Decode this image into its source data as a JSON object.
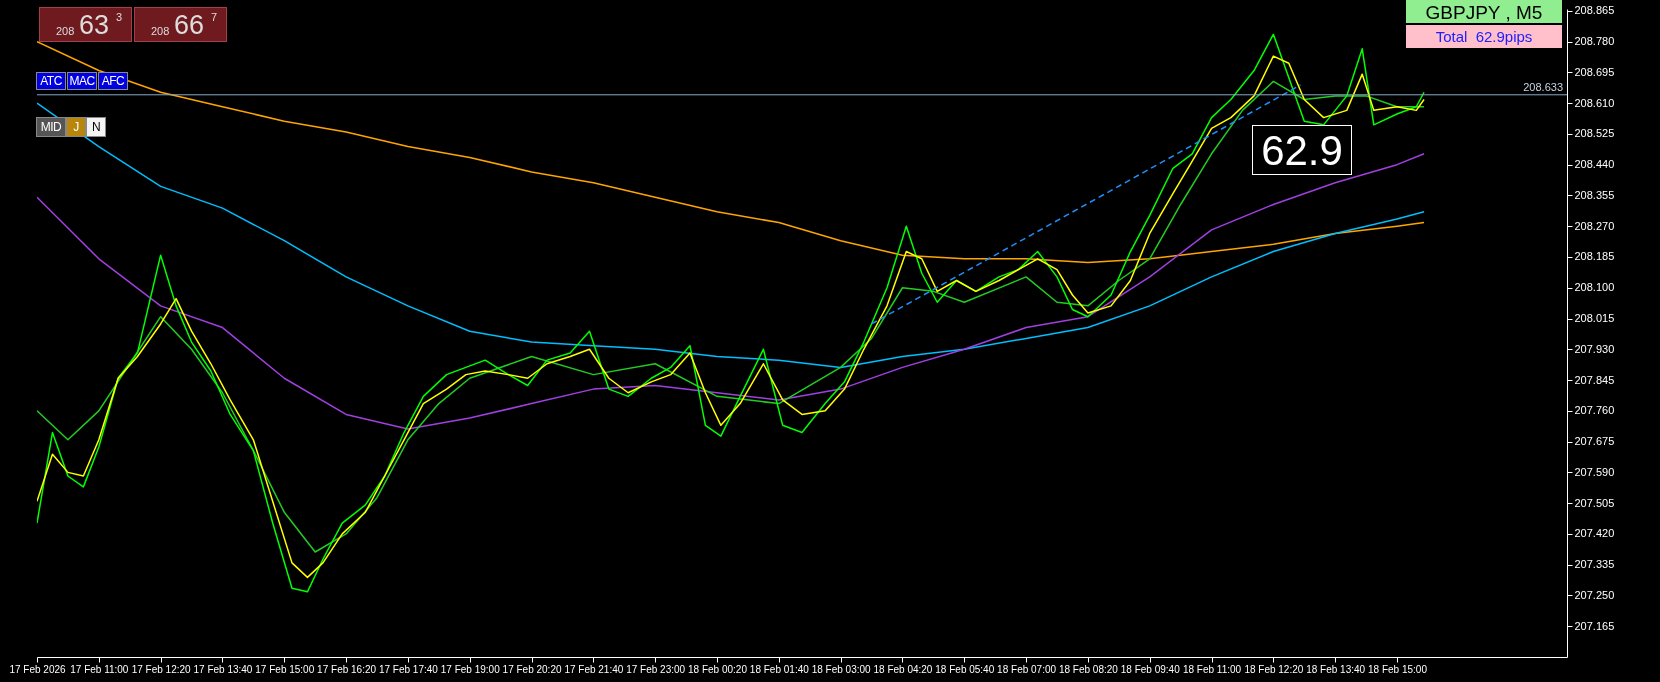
{
  "chart_data": {
    "type": "line",
    "title": "GBPJPY , M5",
    "subtitle": "Total  62.9pips",
    "xlim": [
      "2026-02-17T09:40",
      "2026-02-18T18:40"
    ],
    "xticks": [
      {
        "value": "2026-02-17T09:40",
        "label": "17 Feb 2026"
      },
      {
        "value": "2026-02-17T11:00",
        "label": "17 Feb 11:00"
      },
      {
        "value": "2026-02-17T12:20",
        "label": "17 Feb 12:20"
      },
      {
        "value": "2026-02-17T13:40",
        "label": "17 Feb 13:40"
      },
      {
        "value": "2026-02-17T15:00",
        "label": "17 Feb 15:00"
      },
      {
        "value": "2026-02-17T16:20",
        "label": "17 Feb 16:20"
      },
      {
        "value": "2026-02-17T17:40",
        "label": "17 Feb 17:40"
      },
      {
        "value": "2026-02-17T19:00",
        "label": "17 Feb 19:00"
      },
      {
        "value": "2026-02-17T20:20",
        "label": "17 Feb 20:20"
      },
      {
        "value": "2026-02-17T21:40",
        "label": "17 Feb 21:40"
      },
      {
        "value": "2026-02-17T23:00",
        "label": "17 Feb 23:00"
      },
      {
        "value": "2026-02-18T00:20",
        "label": "18 Feb 00:20"
      },
      {
        "value": "2026-02-18T01:40",
        "label": "18 Feb 01:40"
      },
      {
        "value": "2026-02-18T03:00",
        "label": "18 Feb 03:00"
      },
      {
        "value": "2026-02-18T04:20",
        "label": "18 Feb 04:20"
      },
      {
        "value": "2026-02-18T05:40",
        "label": "18 Feb 05:40"
      },
      {
        "value": "2026-02-18T07:00",
        "label": "18 Feb 07:00"
      },
      {
        "value": "2026-02-18T08:20",
        "label": "18 Feb 08:20"
      },
      {
        "value": "2026-02-18T09:40",
        "label": "18 Feb 09:40"
      },
      {
        "value": "2026-02-18T11:00",
        "label": "18 Feb 11:00"
      },
      {
        "value": "2026-02-18T12:20",
        "label": "18 Feb 12:20"
      },
      {
        "value": "2026-02-18T13:40",
        "label": "18 Feb 13:40"
      },
      {
        "value": "2026-02-18T15:00",
        "label": "18 Feb 15:00"
      }
    ],
    "ylim": [
      207.08,
      208.87
    ],
    "yticks": [
      207.165,
      {
        "value": 207.25,
        "label": "207.250"
      },
      207.335,
      {
        "value": 207.42,
        "label": "207.420"
      },
      207.505,
      {
        "value": 207.59,
        "label": "207.590"
      },
      207.675,
      {
        "value": 207.76,
        "label": "207.760"
      },
      207.845,
      {
        "value": 207.93,
        "label": "207.930"
      },
      208.015,
      {
        "value": 208.1,
        "label": "208.100"
      },
      208.185,
      {
        "value": 208.27,
        "label": "208.270"
      },
      208.355,
      {
        "value": 208.44,
        "label": "208.440"
      },
      208.525,
      {
        "value": 208.61,
        "label": "208.610"
      },
      208.695,
      {
        "value": 208.78,
        "label": "208.780"
      },
      208.865
    ],
    "grid": false,
    "ref_lines": [
      {
        "axis": "y",
        "value": 208.633,
        "label": "208.633",
        "color": "#87a9c8"
      }
    ],
    "annotations": [
      "208",
      "63",
      "3",
      "208",
      "66",
      "7",
      "ATC",
      "MAC",
      "AFC",
      "MID",
      "J",
      "N",
      "62.9"
    ],
    "series": [
      {
        "color": "#ffa500",
        "x": [
          "2026-02-17T09:40",
          "2026-02-17T11:00",
          "2026-02-17T12:20",
          "2026-02-17T13:40",
          "2026-02-17T15:00",
          "2026-02-17T16:20",
          "2026-02-17T17:40",
          "2026-02-17T19:00",
          "2026-02-17T20:20",
          "2026-02-17T21:40",
          "2026-02-17T23:00",
          "2026-02-18T00:20",
          "2026-02-18T01:40",
          "2026-02-18T03:00",
          "2026-02-18T04:20",
          "2026-02-18T05:40",
          "2026-02-18T07:00",
          "2026-02-18T08:20",
          "2026-02-18T09:40",
          "2026-02-18T11:00",
          "2026-02-18T12:20",
          "2026-02-18T13:40",
          "2026-02-18T15:00",
          "2026-02-18T15:35"
        ],
        "values": [
          208.78,
          208.7,
          208.64,
          208.6,
          208.56,
          208.53,
          208.49,
          208.46,
          208.42,
          208.39,
          208.35,
          208.31,
          208.28,
          208.23,
          208.19,
          208.18,
          208.18,
          208.17,
          208.18,
          208.2,
          208.22,
          208.25,
          208.27,
          208.28
        ]
      },
      {
        "color": "#00bfff",
        "x": [
          "2026-02-17T09:40",
          "2026-02-17T11:00",
          "2026-02-17T12:20",
          "2026-02-17T13:40",
          "2026-02-17T15:00",
          "2026-02-17T16:20",
          "2026-02-17T17:40",
          "2026-02-17T19:00",
          "2026-02-17T20:20",
          "2026-02-17T21:40",
          "2026-02-17T23:00",
          "2026-02-18T00:20",
          "2026-02-18T01:40",
          "2026-02-18T03:00",
          "2026-02-18T04:20",
          "2026-02-18T05:40",
          "2026-02-18T07:00",
          "2026-02-18T08:20",
          "2026-02-18T09:40",
          "2026-02-18T11:00",
          "2026-02-18T12:20",
          "2026-02-18T13:40",
          "2026-02-18T15:00",
          "2026-02-18T15:35"
        ],
        "values": [
          208.61,
          208.49,
          208.38,
          208.32,
          208.23,
          208.13,
          208.05,
          207.98,
          207.95,
          207.94,
          207.93,
          207.91,
          207.9,
          207.88,
          207.91,
          207.93,
          207.96,
          207.99,
          208.05,
          208.13,
          208.2,
          208.25,
          208.29,
          208.31
        ]
      },
      {
        "color": "#a040e0",
        "x": [
          "2026-02-17T09:40",
          "2026-02-17T11:00",
          "2026-02-17T12:20",
          "2026-02-17T13:40",
          "2026-02-17T15:00",
          "2026-02-17T16:20",
          "2026-02-17T17:40",
          "2026-02-17T19:00",
          "2026-02-17T20:20",
          "2026-02-17T21:40",
          "2026-02-17T23:00",
          "2026-02-18T00:20",
          "2026-02-18T01:40",
          "2026-02-18T03:00",
          "2026-02-18T04:20",
          "2026-02-18T05:40",
          "2026-02-18T07:00",
          "2026-02-18T08:20",
          "2026-02-18T09:40",
          "2026-02-18T11:00",
          "2026-02-18T12:20",
          "2026-02-18T13:40",
          "2026-02-18T15:00",
          "2026-02-18T15:35"
        ],
        "values": [
          208.35,
          208.18,
          208.05,
          207.99,
          207.85,
          207.75,
          207.71,
          207.74,
          207.78,
          207.82,
          207.83,
          207.81,
          207.79,
          207.82,
          207.88,
          207.93,
          207.99,
          208.02,
          208.13,
          208.26,
          208.33,
          208.39,
          208.44,
          208.47
        ]
      },
      {
        "color": "#22cc22",
        "x": [
          "2026-02-17T09:40",
          "2026-02-17T10:20",
          "2026-02-17T11:00",
          "2026-02-17T11:40",
          "2026-02-17T12:20",
          "2026-02-17T13:00",
          "2026-02-17T13:40",
          "2026-02-17T14:20",
          "2026-02-17T15:00",
          "2026-02-17T15:40",
          "2026-02-17T16:20",
          "2026-02-17T17:00",
          "2026-02-17T17:40",
          "2026-02-17T18:20",
          "2026-02-17T19:00",
          "2026-02-17T20:20",
          "2026-02-17T21:40",
          "2026-02-17T23:00",
          "2026-02-18T00:20",
          "2026-02-18T01:40",
          "2026-02-18T03:00",
          "2026-02-18T03:40",
          "2026-02-18T04:20",
          "2026-02-18T05:00",
          "2026-02-18T05:40",
          "2026-02-18T07:00",
          "2026-02-18T07:40",
          "2026-02-18T08:20",
          "2026-02-18T09:00",
          "2026-02-18T09:40",
          "2026-02-18T10:20",
          "2026-02-18T11:00",
          "2026-02-18T11:40",
          "2026-02-18T12:20",
          "2026-02-18T13:00",
          "2026-02-18T13:40",
          "2026-02-18T14:20",
          "2026-02-18T15:00",
          "2026-02-18T15:35"
        ],
        "values": [
          207.76,
          207.68,
          207.76,
          207.89,
          208.02,
          207.93,
          207.81,
          207.65,
          207.48,
          207.37,
          207.42,
          207.52,
          207.68,
          207.78,
          207.85,
          207.91,
          207.86,
          207.89,
          207.8,
          207.78,
          207.88,
          207.96,
          208.1,
          208.09,
          208.06,
          208.13,
          208.06,
          208.05,
          208.12,
          208.18,
          208.33,
          208.47,
          208.59,
          208.67,
          208.62,
          208.63,
          208.63,
          208.6,
          208.6
        ]
      },
      {
        "color": "#00ff00",
        "x": [
          "2026-02-17T09:40",
          "2026-02-17T10:00",
          "2026-02-17T10:20",
          "2026-02-17T10:40",
          "2026-02-17T11:00",
          "2026-02-17T11:25",
          "2026-02-17T11:50",
          "2026-02-17T12:20",
          "2026-02-17T12:40",
          "2026-02-17T13:00",
          "2026-02-17T13:25",
          "2026-02-17T13:50",
          "2026-02-17T14:20",
          "2026-02-17T14:45",
          "2026-02-17T15:10",
          "2026-02-17T15:30",
          "2026-02-17T15:50",
          "2026-02-17T16:15",
          "2026-02-17T16:45",
          "2026-02-17T17:10",
          "2026-02-17T17:35",
          "2026-02-17T18:00",
          "2026-02-17T18:30",
          "2026-02-17T18:55",
          "2026-02-17T19:20",
          "2026-02-17T19:50",
          "2026-02-17T20:15",
          "2026-02-17T20:40",
          "2026-02-17T21:10",
          "2026-02-17T21:35",
          "2026-02-17T22:00",
          "2026-02-17T22:25",
          "2026-02-17T22:55",
          "2026-02-17T23:20",
          "2026-02-17T23:45",
          "2026-02-18T00:05",
          "2026-02-18T00:25",
          "2026-02-18T00:50",
          "2026-02-18T01:20",
          "2026-02-18T01:45",
          "2026-02-18T02:10",
          "2026-02-18T02:40",
          "2026-02-18T03:05",
          "2026-02-18T03:30",
          "2026-02-18T04:00",
          "2026-02-18T04:25",
          "2026-02-18T04:45",
          "2026-02-18T05:05",
          "2026-02-18T05:30",
          "2026-02-18T05:55",
          "2026-02-18T06:25",
          "2026-02-18T06:50",
          "2026-02-18T07:15",
          "2026-02-18T07:40",
          "2026-02-18T08:00",
          "2026-02-18T08:20",
          "2026-02-18T08:50",
          "2026-02-18T09:15",
          "2026-02-18T09:40",
          "2026-02-18T10:10",
          "2026-02-18T10:35",
          "2026-02-18T11:00",
          "2026-02-18T11:25",
          "2026-02-18T11:55",
          "2026-02-18T12:20",
          "2026-02-18T12:40",
          "2026-02-18T13:00",
          "2026-02-18T13:25",
          "2026-02-18T13:55",
          "2026-02-18T14:15",
          "2026-02-18T14:30",
          "2026-02-18T15:00",
          "2026-02-18T15:25",
          "2026-02-18T15:35"
        ],
        "values": [
          207.45,
          207.7,
          207.58,
          207.55,
          207.66,
          207.85,
          207.92,
          208.19,
          208.05,
          207.95,
          207.87,
          207.75,
          207.65,
          207.45,
          207.27,
          207.26,
          207.35,
          207.45,
          207.5,
          207.58,
          207.7,
          207.8,
          207.86,
          207.88,
          207.9,
          207.86,
          207.83,
          207.9,
          207.92,
          207.98,
          207.82,
          207.8,
          207.85,
          207.88,
          207.94,
          207.72,
          207.69,
          207.8,
          207.93,
          207.72,
          207.7,
          207.78,
          207.84,
          207.95,
          208.1,
          208.27,
          208.14,
          208.06,
          208.12,
          208.09,
          208.13,
          208.15,
          208.2,
          208.13,
          208.04,
          208.02,
          208.08,
          208.2,
          208.3,
          208.43,
          208.47,
          208.57,
          208.62,
          208.7,
          208.8,
          208.68,
          208.56,
          208.55,
          208.63,
          208.76,
          208.55,
          208.58,
          208.6,
          208.64
        ]
      },
      {
        "color": "#ffff00",
        "x": [
          "2026-02-17T09:40",
          "2026-02-17T10:00",
          "2026-02-17T10:20",
          "2026-02-17T10:40",
          "2026-02-17T11:00",
          "2026-02-17T11:25",
          "2026-02-17T11:50",
          "2026-02-17T12:20",
          "2026-02-17T12:40",
          "2026-02-17T13:00",
          "2026-02-17T13:25",
          "2026-02-17T13:50",
          "2026-02-17T14:20",
          "2026-02-17T14:45",
          "2026-02-17T15:10",
          "2026-02-17T15:30",
          "2026-02-17T15:50",
          "2026-02-17T16:15",
          "2026-02-17T16:45",
          "2026-02-17T17:10",
          "2026-02-17T17:35",
          "2026-02-17T18:00",
          "2026-02-17T18:30",
          "2026-02-17T18:55",
          "2026-02-17T19:20",
          "2026-02-17T19:50",
          "2026-02-17T20:15",
          "2026-02-17T20:40",
          "2026-02-17T21:10",
          "2026-02-17T21:35",
          "2026-02-17T22:00",
          "2026-02-17T22:25",
          "2026-02-17T22:55",
          "2026-02-17T23:20",
          "2026-02-17T23:45",
          "2026-02-18T00:05",
          "2026-02-18T00:25",
          "2026-02-18T00:50",
          "2026-02-18T01:20",
          "2026-02-18T01:45",
          "2026-02-18T02:10",
          "2026-02-18T02:40",
          "2026-02-18T03:05",
          "2026-02-18T03:30",
          "2026-02-18T04:00",
          "2026-02-18T04:25",
          "2026-02-18T04:45",
          "2026-02-18T05:05",
          "2026-02-18T05:30",
          "2026-02-18T05:55",
          "2026-02-18T06:25",
          "2026-02-18T06:50",
          "2026-02-18T07:15",
          "2026-02-18T07:40",
          "2026-02-18T08:00",
          "2026-02-18T08:20",
          "2026-02-18T08:50",
          "2026-02-18T09:15",
          "2026-02-18T09:40",
          "2026-02-18T10:10",
          "2026-02-18T10:35",
          "2026-02-18T11:00",
          "2026-02-18T11:25",
          "2026-02-18T11:55",
          "2026-02-18T12:20",
          "2026-02-18T12:40",
          "2026-02-18T13:00",
          "2026-02-18T13:25",
          "2026-02-18T13:55",
          "2026-02-18T14:15",
          "2026-02-18T14:30",
          "2026-02-18T15:00",
          "2026-02-18T15:25",
          "2026-02-18T15:35"
        ],
        "values": [
          207.51,
          207.64,
          207.59,
          207.58,
          207.68,
          207.85,
          207.91,
          208.0,
          208.07,
          207.98,
          207.89,
          207.79,
          207.68,
          207.51,
          207.34,
          207.3,
          207.34,
          207.42,
          207.48,
          207.58,
          207.68,
          207.78,
          207.82,
          207.86,
          207.87,
          207.86,
          207.85,
          207.89,
          207.91,
          207.93,
          207.85,
          207.81,
          207.84,
          207.86,
          207.92,
          207.81,
          207.72,
          207.78,
          207.89,
          207.79,
          207.75,
          207.76,
          207.82,
          207.93,
          208.05,
          208.2,
          208.18,
          208.09,
          208.12,
          208.09,
          208.12,
          208.15,
          208.18,
          208.15,
          208.08,
          208.03,
          208.05,
          208.12,
          208.25,
          208.36,
          208.45,
          208.54,
          208.57,
          208.63,
          208.74,
          208.72,
          208.62,
          208.57,
          208.59,
          208.69,
          208.59,
          208.6,
          208.59,
          208.62
        ]
      },
      {
        "color": "#1e90ff",
        "line_style": "dashed",
        "x": [
          "2026-02-18T03:40",
          "2026-02-18T12:55"
        ],
        "values": [
          208.0,
          208.66
        ]
      }
    ]
  }
}
